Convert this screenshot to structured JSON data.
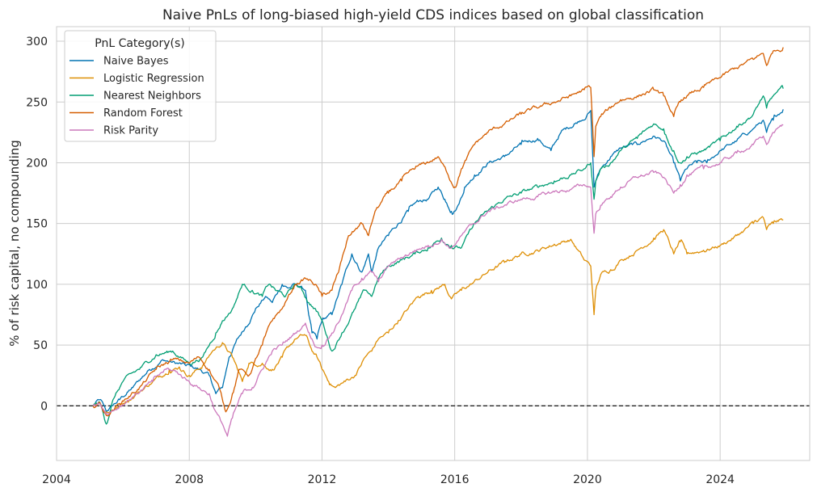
{
  "chart_data": {
    "type": "line",
    "title": "Naive PnLs of long-biased high-yield CDS indices based on global classification",
    "xlabel": "",
    "ylabel": "% of risk capital, no compounding",
    "xlim": [
      2004.0,
      2026.7
    ],
    "ylim": [
      -45,
      312
    ],
    "xticks": [
      2004,
      2008,
      2012,
      2016,
      2020,
      2024
    ],
    "xtick_labels": [
      "2004",
      "2008",
      "2012",
      "2016",
      "2020",
      "2024"
    ],
    "yticks": [
      0,
      50,
      100,
      150,
      200,
      250,
      300
    ],
    "ytick_labels": [
      "0",
      "50",
      "100",
      "150",
      "200",
      "250",
      "300"
    ],
    "grid": true,
    "reference_line": {
      "y": 0,
      "style": "dashed",
      "color": "#000000"
    },
    "legend": {
      "title": "PnL Category(s)",
      "position": "top-left"
    },
    "series": [
      {
        "name": "Naive Bayes",
        "color": "#0173b2",
        "x": [
          2005.1,
          2005.3,
          2005.5,
          2005.9,
          2006.3,
          2006.8,
          2007.2,
          2007.6,
          2007.9,
          2008.3,
          2008.6,
          2008.8,
          2009.0,
          2009.2,
          2009.4,
          2009.7,
          2010.0,
          2010.3,
          2010.5,
          2010.8,
          2011.0,
          2011.2,
          2011.5,
          2011.6,
          2011.7,
          2011.85,
          2012.0,
          2012.3,
          2012.6,
          2012.9,
          2013.2,
          2013.4,
          2013.5,
          2013.7,
          2014.0,
          2014.3,
          2014.6,
          2014.9,
          2015.2,
          2015.5,
          2015.7,
          2015.9,
          2016.1,
          2016.3,
          2016.6,
          2017.0,
          2017.5,
          2018.0,
          2018.5,
          2018.9,
          2019.2,
          2019.6,
          2020.0,
          2020.1,
          2020.2,
          2020.25,
          2020.4,
          2020.7,
          2021.0,
          2021.5,
          2022.0,
          2022.3,
          2022.6,
          2022.8,
          2023.0,
          2023.3,
          2023.6,
          2024.0,
          2024.5,
          2025.0,
          2025.3,
          2025.4,
          2025.6,
          2025.9
        ],
        "values": [
          0,
          5,
          -5,
          5,
          15,
          30,
          38,
          35,
          33,
          30,
          25,
          10,
          15,
          40,
          52,
          65,
          80,
          90,
          85,
          100,
          97,
          100,
          95,
          75,
          60,
          55,
          70,
          75,
          100,
          125,
          110,
          125,
          110,
          130,
          140,
          150,
          160,
          168,
          170,
          180,
          170,
          160,
          165,
          180,
          190,
          200,
          205,
          215,
          220,
          210,
          225,
          232,
          240,
          243,
          180,
          185,
          195,
          205,
          212,
          215,
          222,
          218,
          200,
          185,
          195,
          200,
          200,
          210,
          218,
          228,
          235,
          225,
          235,
          244
        ]
      },
      {
        "name": "Logistic Regression",
        "color": "#de8f05",
        "x": [
          2005.1,
          2005.3,
          2005.5,
          2005.9,
          2006.4,
          2006.9,
          2007.4,
          2007.7,
          2008.0,
          2008.4,
          2008.7,
          2009.0,
          2009.3,
          2009.6,
          2009.8,
          2010.2,
          2010.5,
          2010.8,
          2011.2,
          2011.5,
          2011.7,
          2011.85,
          2012.0,
          2012.2,
          2012.4,
          2012.7,
          2013.0,
          2013.3,
          2013.5,
          2013.7,
          2014.0,
          2014.3,
          2014.6,
          2014.9,
          2015.3,
          2015.7,
          2015.9,
          2016.2,
          2016.5,
          2017.0,
          2017.5,
          2018.0,
          2018.5,
          2019.0,
          2019.5,
          2019.9,
          2020.1,
          2020.2,
          2020.25,
          2020.4,
          2020.7,
          2021.0,
          2021.5,
          2022.0,
          2022.3,
          2022.6,
          2022.8,
          2023.0,
          2023.5,
          2024.0,
          2024.5,
          2025.0,
          2025.3,
          2025.4,
          2025.6,
          2025.9
        ],
        "values": [
          0,
          3,
          -5,
          0,
          10,
          20,
          30,
          32,
          25,
          33,
          45,
          52,
          40,
          20,
          35,
          35,
          30,
          40,
          55,
          58,
          45,
          40,
          30,
          20,
          15,
          20,
          25,
          40,
          45,
          55,
          60,
          70,
          80,
          90,
          95,
          100,
          88,
          95,
          100,
          110,
          118,
          125,
          128,
          133,
          137,
          120,
          115,
          75,
          95,
          108,
          112,
          120,
          128,
          138,
          145,
          125,
          135,
          125,
          128,
          132,
          140,
          150,
          155,
          145,
          150,
          153
        ]
      },
      {
        "name": "Nearest Neighbors",
        "color": "#029e73",
        "x": [
          2005.1,
          2005.3,
          2005.5,
          2005.7,
          2006.0,
          2006.5,
          2007.0,
          2007.5,
          2008.0,
          2008.4,
          2008.8,
          2009.0,
          2009.3,
          2009.6,
          2009.9,
          2010.2,
          2010.4,
          2010.6,
          2010.9,
          2011.2,
          2011.4,
          2011.6,
          2011.8,
          2012.0,
          2012.3,
          2012.6,
          2013.0,
          2013.3,
          2013.5,
          2013.7,
          2014.0,
          2014.4,
          2014.8,
          2015.2,
          2015.6,
          2015.9,
          2016.2,
          2016.6,
          2017.0,
          2017.5,
          2018.0,
          2018.5,
          2019.0,
          2019.5,
          2019.9,
          2020.1,
          2020.2,
          2020.25,
          2020.4,
          2020.7,
          2021.0,
          2021.5,
          2022.0,
          2022.3,
          2022.6,
          2022.8,
          2023.0,
          2023.5,
          2024.0,
          2024.5,
          2025.0,
          2025.3,
          2025.4,
          2025.6,
          2025.9
        ],
        "values": [
          0,
          3,
          -15,
          5,
          20,
          30,
          42,
          45,
          35,
          40,
          60,
          70,
          80,
          100,
          95,
          90,
          100,
          95,
          90,
          100,
          95,
          85,
          80,
          70,
          45,
          60,
          80,
          95,
          90,
          105,
          115,
          120,
          125,
          130,
          138,
          132,
          130,
          150,
          160,
          170,
          175,
          180,
          185,
          190,
          195,
          200,
          170,
          185,
          195,
          200,
          210,
          220,
          232,
          228,
          210,
          200,
          205,
          210,
          218,
          230,
          240,
          255,
          245,
          255,
          261
        ]
      },
      {
        "name": "Random Forest",
        "color": "#d55e00",
        "x": [
          2005.1,
          2005.3,
          2005.5,
          2005.9,
          2006.5,
          2007.0,
          2007.5,
          2008.0,
          2008.3,
          2008.6,
          2008.9,
          2009.1,
          2009.3,
          2009.5,
          2009.8,
          2010.2,
          2010.5,
          2010.8,
          2011.2,
          2011.5,
          2011.8,
          2012.0,
          2012.3,
          2012.5,
          2012.8,
          2013.2,
          2013.4,
          2013.6,
          2014.0,
          2014.4,
          2014.8,
          2015.2,
          2015.5,
          2015.8,
          2016.0,
          2016.2,
          2016.6,
          2017.0,
          2017.5,
          2018.0,
          2018.5,
          2019.0,
          2019.5,
          2019.9,
          2020.1,
          2020.2,
          2020.25,
          2020.4,
          2020.7,
          2021.0,
          2021.5,
          2022.0,
          2022.3,
          2022.6,
          2022.8,
          2023.0,
          2023.5,
          2024.0,
          2024.5,
          2025.0,
          2025.3,
          2025.4,
          2025.6,
          2025.9
        ],
        "values": [
          0,
          3,
          -8,
          2,
          15,
          30,
          38,
          35,
          40,
          30,
          15,
          -5,
          10,
          30,
          25,
          50,
          70,
          80,
          100,
          105,
          100,
          90,
          95,
          110,
          140,
          150,
          140,
          160,
          175,
          185,
          195,
          200,
          205,
          190,
          180,
          195,
          215,
          225,
          232,
          240,
          245,
          250,
          255,
          260,
          262,
          205,
          230,
          238,
          245,
          252,
          255,
          260,
          255,
          238,
          250,
          255,
          262,
          270,
          278,
          285,
          290,
          280,
          292,
          295
        ]
      },
      {
        "name": "Risk Parity",
        "color": "#cc78bc",
        "x": [
          2005.1,
          2005.3,
          2005.5,
          2005.9,
          2006.4,
          2006.9,
          2007.3,
          2007.6,
          2008.0,
          2008.3,
          2008.6,
          2008.8,
          2009.0,
          2009.15,
          2009.3,
          2009.6,
          2009.9,
          2010.2,
          2010.5,
          2010.8,
          2011.2,
          2011.5,
          2011.7,
          2011.85,
          2012.0,
          2012.3,
          2012.6,
          2012.9,
          2013.2,
          2013.5,
          2013.7,
          2014.0,
          2014.4,
          2014.8,
          2015.2,
          2015.6,
          2015.9,
          2016.2,
          2016.6,
          2017.0,
          2017.5,
          2018.0,
          2018.5,
          2019.0,
          2019.5,
          2019.9,
          2020.1,
          2020.2,
          2020.25,
          2020.4,
          2020.7,
          2021.0,
          2021.5,
          2022.0,
          2022.3,
          2022.6,
          2022.8,
          2023.0,
          2023.5,
          2024.0,
          2024.5,
          2025.0,
          2025.3,
          2025.4,
          2025.6,
          2025.9
        ],
        "values": [
          0,
          2,
          -6,
          0,
          10,
          20,
          30,
          28,
          20,
          15,
          10,
          -5,
          -15,
          -25,
          -10,
          10,
          15,
          30,
          45,
          50,
          60,
          68,
          55,
          48,
          50,
          60,
          75,
          95,
          105,
          110,
          102,
          115,
          122,
          128,
          132,
          137,
          130,
          140,
          150,
          160,
          165,
          170,
          172,
          176,
          178,
          182,
          180,
          142,
          158,
          165,
          172,
          180,
          188,
          192,
          188,
          175,
          182,
          190,
          195,
          200,
          208,
          215,
          222,
          215,
          225,
          231
        ]
      }
    ]
  }
}
